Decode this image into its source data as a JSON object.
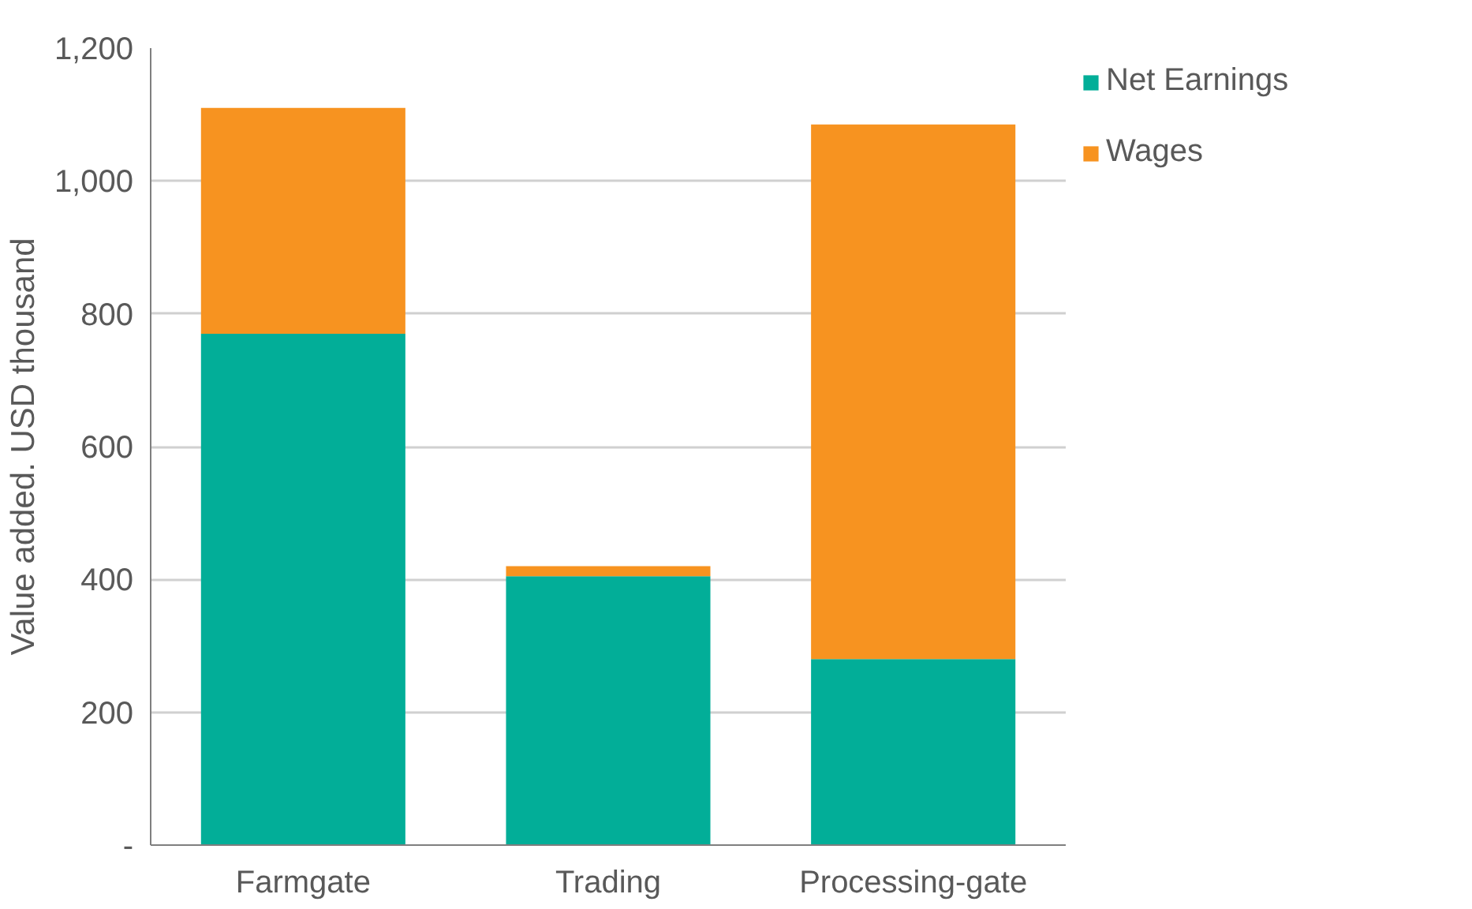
{
  "chart_data": {
    "type": "bar",
    "stacked": true,
    "ylabel": "Value added. USD thousand",
    "categories": [
      "Farmgate",
      "Trading",
      "Processing-gate"
    ],
    "series": [
      {
        "name": "Net Earnings",
        "color": "#02ae98",
        "values": [
          770,
          405,
          280
        ]
      },
      {
        "name": "Wages",
        "color": "#f79320",
        "values": [
          340,
          15,
          805
        ]
      }
    ],
    "ylim": [
      0,
      1200
    ],
    "yticks": [
      {
        "value": 0,
        "label": "-"
      },
      {
        "value": 200,
        "label": "200"
      },
      {
        "value": 400,
        "label": "400"
      },
      {
        "value": 600,
        "label": "600"
      },
      {
        "value": 800,
        "label": "800"
      },
      {
        "value": 1000,
        "label": "1,000"
      },
      {
        "value": 1200,
        "label": "1,200"
      }
    ],
    "grid": "y",
    "legend": "top right"
  }
}
